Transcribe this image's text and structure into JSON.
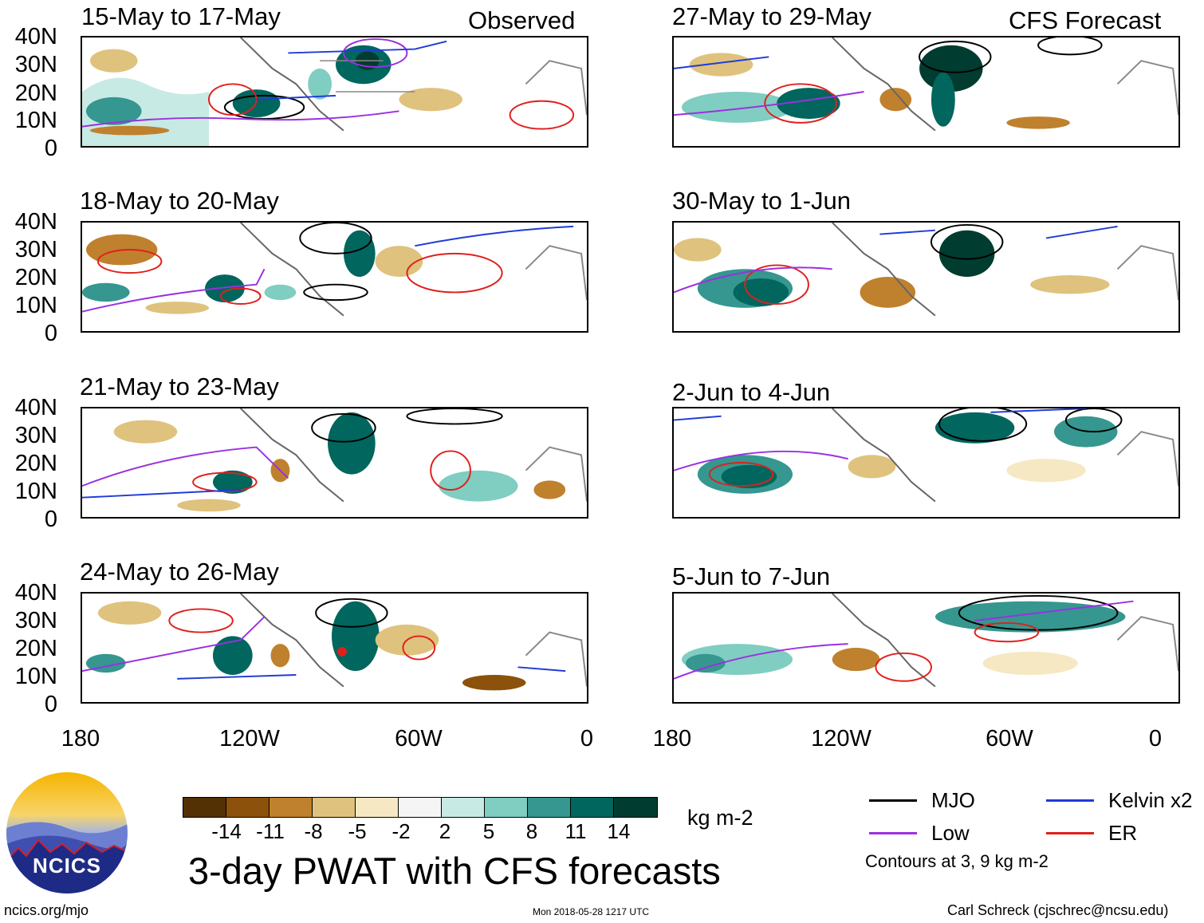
{
  "corner_labels": {
    "left": "Observed",
    "right": "CFS Forecast"
  },
  "panels": [
    {
      "title": "15-May to 17-May",
      "column": "observed"
    },
    {
      "title": "18-May to 20-May",
      "column": "observed"
    },
    {
      "title": "21-May to 23-May",
      "column": "observed"
    },
    {
      "title": "24-May to 26-May",
      "column": "observed"
    },
    {
      "title": "27-May to 29-May",
      "column": "forecast"
    },
    {
      "title": "30-May to 1-Jun",
      "column": "forecast"
    },
    {
      "title": "2-Jun to 4-Jun",
      "column": "forecast"
    },
    {
      "title": "5-Jun to 7-Jun",
      "column": "forecast"
    }
  ],
  "y_axis_labels": [
    "40N",
    "30N",
    "20N",
    "10N",
    "0"
  ],
  "x_axis_labels": [
    "180",
    "120W",
    "60W",
    "0"
  ],
  "colorbar": {
    "colors": [
      "#543005",
      "#8c510a",
      "#bf812d",
      "#dfc27d",
      "#f6e8c3",
      "#f5f5f5",
      "#c7eae5",
      "#80cdc1",
      "#35978f",
      "#01665e",
      "#003c30"
    ],
    "ticks": [
      "-14",
      "-11",
      "-8",
      "-5",
      "-2",
      "2",
      "5",
      "8",
      "11",
      "14"
    ],
    "units": "kg m-2"
  },
  "main_title": "3-day PWAT with CFS forecasts",
  "legend": [
    {
      "label": "MJO",
      "color": "#000000"
    },
    {
      "label": "Kelvin x2",
      "color": "#1f3bd6"
    },
    {
      "label": "Low",
      "color": "#9b30e0"
    },
    {
      "label": "ER",
      "color": "#e0201c"
    }
  ],
  "contour_note": "Contours at 3, 9 kg m-2",
  "logo_text": "NCICS",
  "footer": {
    "url": "ncics.org/mjo",
    "timestamp": "Mon 2018-05-28 1217 UTC",
    "credit": "Carl Schreck (cjschrec@ncsu.edu)"
  }
}
